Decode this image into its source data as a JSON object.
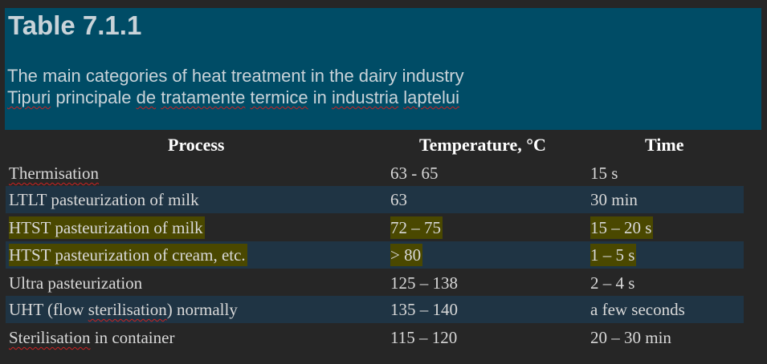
{
  "header": {
    "title": "Table 7.1.1",
    "subtitle_en": "The main categories of heat treatment in the dairy industry",
    "subtitle_ro_parts": [
      "Tipuri",
      " principale ",
      "de",
      " ",
      "tratamente",
      " ",
      "termice",
      " in ",
      "industria",
      " ",
      "laptelui"
    ]
  },
  "table": {
    "headers": [
      "Process",
      "Temperature, °C",
      "Time"
    ],
    "rows": [
      {
        "process": "Thermisation",
        "temperature": "63 - 65",
        "time": "15 s"
      },
      {
        "process": "LTLT pasteurization of milk",
        "temperature": "63",
        "time": "30 min"
      },
      {
        "process": "HTST pasteurization of milk",
        "temperature": "72 – 75",
        "time": "15 – 20 s"
      },
      {
        "process": "HTST pasteurization of cream, etc.",
        "temperature": "> 80",
        "time": "1 – 5 s"
      },
      {
        "process": "Ultra pasteurization",
        "temperature": "125 – 138",
        "time": "2 – 4 s"
      },
      {
        "process_parts": [
          "UHT (flow ",
          "sterilisation",
          ") normally"
        ],
        "temperature": "135 – 140",
        "time": "a few seconds"
      },
      {
        "process_parts": [
          "Sterilisation",
          " in container"
        ],
        "temperature": "115 – 120",
        "time": "20 – 30 min"
      }
    ]
  },
  "colors": {
    "background": "#262626",
    "header_band": "#004c66",
    "row_shade": "#1f3444",
    "highlight": "#4a4800",
    "spellcheck_underline": "#cc2222"
  }
}
